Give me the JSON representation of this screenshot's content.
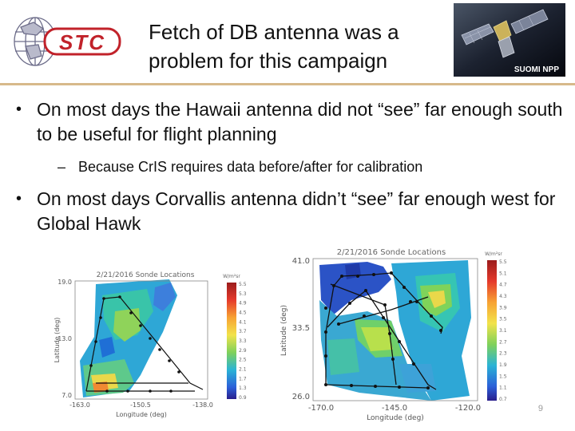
{
  "header": {
    "logo_text": "STC",
    "title_line1": "Fetch of DB antenna was a",
    "title_line2": "problem for this campaign",
    "satellite_label": "SUOMI NPP"
  },
  "bullets": [
    {
      "text": "On most days the Hawaii antenna did not “see” far enough south to be useful for flight planning",
      "sub": "Because CrIS requires data before/after for calibration"
    },
    {
      "text": "On most days Corvallis antenna didn’t “see” far enough west for Global Hawk"
    }
  ],
  "page_number": "9",
  "chart_data": [
    {
      "type": "map",
      "title": "2/21/2016 Sonde Locations",
      "xlabel": "Longitude (deg)",
      "ylabel": "Latitude (deg)",
      "xticks": [
        "-163.0",
        "-150.5",
        "-138.0"
      ],
      "yticks": [
        "19.0",
        "13.0",
        "7.0"
      ],
      "xlim": [
        -163.0,
        -138.0
      ],
      "ylim": [
        7.0,
        19.0
      ],
      "colorbar_label": "W/m²sr",
      "colorbar_ticks": [
        "5.5",
        "5.3",
        "4.9",
        "4.5",
        "4.1",
        "3.7",
        "3.3",
        "2.9",
        "2.5",
        "2.1",
        "1.7",
        "1.3",
        "0.9"
      ]
    },
    {
      "type": "map",
      "title": "2/21/2016 Sonde Locations",
      "xlabel": "Longitude (deg)",
      "ylabel": "Latitude (deg)",
      "xticks": [
        "-170.0",
        "-145.0",
        "-120.0"
      ],
      "yticks": [
        "41.0",
        "33.5",
        "26.0"
      ],
      "xlim": [
        -170.0,
        -120.0
      ],
      "ylim": [
        26.0,
        41.0
      ],
      "colorbar_label": "W/m²sr",
      "colorbar_ticks": [
        "5.5",
        "5.1",
        "4.7",
        "4.3",
        "3.9",
        "3.5",
        "3.1",
        "2.7",
        "2.3",
        "1.9",
        "1.5",
        "1.1",
        "0.7"
      ]
    }
  ]
}
